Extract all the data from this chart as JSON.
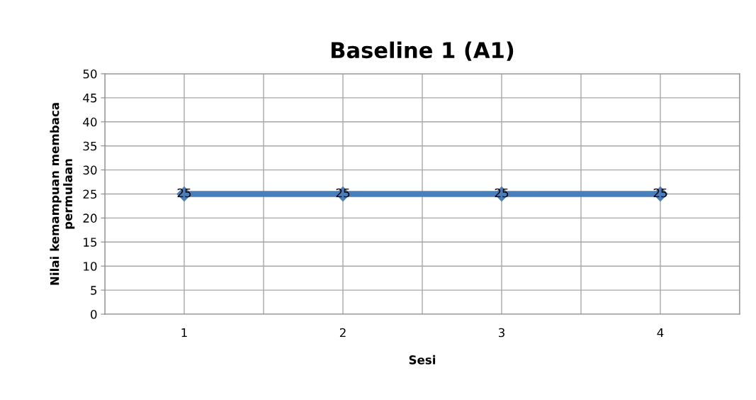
{
  "chart_data": {
    "type": "line",
    "title": "Baseline 1 (A1)",
    "xlabel": "Sesi",
    "ylabel": "Nilai kemampuan membaca\npermulaan",
    "categories": [
      "1",
      "2",
      "3",
      "4"
    ],
    "series": [
      {
        "color": "#4a7ebb",
        "values": [
          25,
          25,
          25,
          25
        ]
      }
    ],
    "ylim": [
      0,
      50
    ],
    "yticks": [
      0,
      5,
      10,
      15,
      20,
      25,
      30,
      35,
      40,
      45,
      50
    ],
    "grid": true,
    "marker": "diamond",
    "line_style": "solid",
    "data_labels": true
  }
}
